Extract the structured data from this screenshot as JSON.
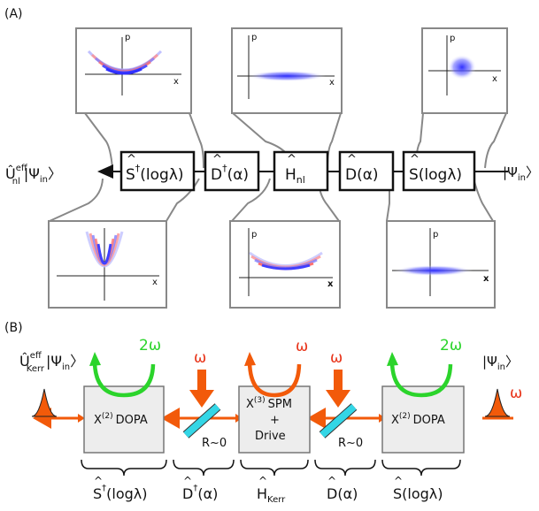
{
  "panel_a": {
    "label": "(A)",
    "output_label": "Û",
    "output_sup": "eff",
    "output_sub": "nl",
    "output_state": "|Ψ",
    "output_state_sub": "in",
    "output_state_close": "〉",
    "input_state": "|Ψ",
    "input_state_sub": "in",
    "input_state_close": "〉",
    "operators": [
      {
        "name": "S",
        "hat": "^",
        "dagger": "†",
        "arg": "(logλ)"
      },
      {
        "name": "D",
        "hat": "^",
        "dagger": "†",
        "arg": "(α)"
      },
      {
        "name": "H",
        "hat": "^",
        "sub": "nl"
      },
      {
        "name": "D",
        "hat": "^",
        "arg": "(α)"
      },
      {
        "name": "S",
        "hat": "^",
        "arg": "(logλ)"
      }
    ],
    "axis_p": "p",
    "axis_x": "x"
  },
  "panel_b": {
    "label": "(B)",
    "output_label": "Û",
    "output_sup": "eff",
    "output_sub": "Kerr",
    "output_state": "|Ψ",
    "output_state_sub": "in",
    "output_state_close": "〉",
    "input_state": "|Ψ",
    "input_state_sub": "in",
    "input_state_close": "〉",
    "omega": "ω",
    "two_omega": "2ω",
    "blocks": [
      {
        "chi": "X",
        "order": "(2)",
        "name": "DOPA"
      },
      {
        "chi": "X",
        "order": "(3)",
        "name": "SPM",
        "plus": "+",
        "extra": "Drive"
      },
      {
        "chi": "X",
        "order": "(2)",
        "name": "DOPA"
      }
    ],
    "mirror_label": "R~0",
    "braces": [
      {
        "name": "S",
        "dagger": "†",
        "arg": "(logλ)"
      },
      {
        "name": "D",
        "dagger": "†",
        "arg": "(α)"
      },
      {
        "name": "H",
        "sub": "Kerr"
      },
      {
        "name": "D",
        "arg": "(α)"
      },
      {
        "name": "S",
        "arg": "(logλ)"
      }
    ]
  },
  "colors": {
    "green": "#2bd42b",
    "orange": "#f25a0a",
    "red_omega": "#e8341a",
    "mirror": "#33d6e6",
    "box_gray": "#ededed",
    "blue": "#2a2aff"
  }
}
